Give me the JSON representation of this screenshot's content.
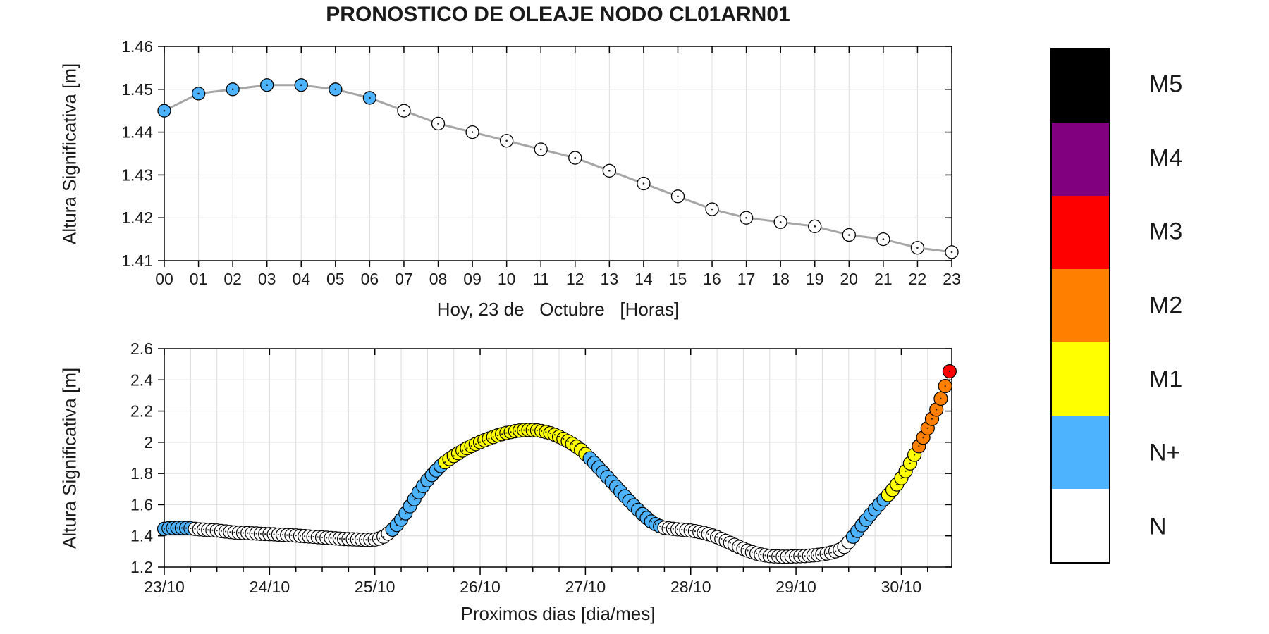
{
  "title": "PRONOSTICO DE OLEAJE NODO CL01ARN01",
  "colors": {
    "N": "#FFFFFF",
    "N+": "#4DB3FF",
    "M1": "#FFFF00",
    "M2": "#FF8000",
    "M3": "#FF0000",
    "M4": "#800080",
    "M5": "#000000",
    "grid": "#DCDCDC",
    "frame": "#000000",
    "line": "#A6A6A6"
  },
  "legend": {
    "entries": [
      {
        "label": "M5",
        "category": "M5"
      },
      {
        "label": "M4",
        "category": "M4"
      },
      {
        "label": "M3",
        "category": "M3"
      },
      {
        "label": "M2",
        "category": "M2"
      },
      {
        "label": "M1",
        "category": "M1"
      },
      {
        "label": "N+",
        "category": "N+"
      },
      {
        "label": "N",
        "category": "N"
      }
    ]
  },
  "chart_data": [
    {
      "type": "line",
      "name": "today-hourly-forecast",
      "xlabel": "Hoy, 23 de   Octubre   [Horas]",
      "ylabel": "Altura Significativa [m]",
      "ylim": [
        1.41,
        1.46
      ],
      "ytick_labels": [
        "1.41",
        "1.42",
        "1.43",
        "1.44",
        "1.45",
        "1.46"
      ],
      "grid": true,
      "x_ticklabels": [
        "00",
        "01",
        "02",
        "03",
        "04",
        "05",
        "06",
        "07",
        "08",
        "09",
        "10",
        "11",
        "12",
        "13",
        "14",
        "15",
        "16",
        "17",
        "18",
        "19",
        "20",
        "21",
        "22",
        "23"
      ],
      "values": [
        1.445,
        1.449,
        1.45,
        1.451,
        1.451,
        1.45,
        1.448,
        1.445,
        1.442,
        1.44,
        1.438,
        1.436,
        1.434,
        1.431,
        1.428,
        1.425,
        1.422,
        1.42,
        1.419,
        1.418,
        1.416,
        1.415,
        1.413,
        1.412
      ],
      "segments": [
        {
          "from": 0,
          "to": 6,
          "category": "N+"
        },
        {
          "from": 7,
          "to": 23,
          "category": "N"
        }
      ]
    },
    {
      "type": "scatter",
      "name": "next-days-hourly-forecast",
      "xlabel": "Proximos dias [dia/mes]",
      "ylabel": "Altura Significativa [m]",
      "ylim": [
        1.2,
        2.6
      ],
      "ytick_labels": [
        "1.2",
        "1.4",
        "1.6",
        "1.8",
        "2",
        "2.2",
        "2.4",
        "2.6"
      ],
      "grid": true,
      "x_ticklabels": [
        "23/10",
        "24/10",
        "25/10",
        "26/10",
        "27/10",
        "28/10",
        "29/10",
        "30/10"
      ],
      "x_tick_hours": [
        0,
        24,
        48,
        72,
        96,
        120,
        144,
        168
      ],
      "minor_tick_step_hours": 6,
      "x_range_hours": [
        0,
        179.5
      ],
      "point_interval_hours": 1,
      "values": [
        1.445,
        1.449,
        1.45,
        1.451,
        1.451,
        1.45,
        1.448,
        1.445,
        1.442,
        1.44,
        1.438,
        1.436,
        1.434,
        1.431,
        1.428,
        1.425,
        1.422,
        1.42,
        1.419,
        1.418,
        1.416,
        1.415,
        1.413,
        1.412,
        1.411,
        1.41,
        1.408,
        1.407,
        1.405,
        1.404,
        1.402,
        1.4,
        1.398,
        1.396,
        1.394,
        1.392,
        1.39,
        1.388,
        1.386,
        1.384,
        1.382,
        1.38,
        1.379,
        1.378,
        1.377,
        1.376,
        1.375,
        1.375,
        1.377,
        1.383,
        1.395,
        1.415,
        1.44,
        1.47,
        1.505,
        1.545,
        1.59,
        1.635,
        1.68,
        1.72,
        1.757,
        1.79,
        1.82,
        1.848,
        1.872,
        1.893,
        1.912,
        1.93,
        1.947,
        1.962,
        1.976,
        1.989,
        2.001,
        2.013,
        2.024,
        2.034,
        2.044,
        2.052,
        2.06,
        2.066,
        2.071,
        2.075,
        2.078,
        2.079,
        2.078,
        2.076,
        2.072,
        2.066,
        2.058,
        2.048,
        2.036,
        2.022,
        2.007,
        1.99,
        1.972,
        1.952,
        1.925,
        1.897,
        1.868,
        1.838,
        1.808,
        1.777,
        1.746,
        1.715,
        1.684,
        1.654,
        1.624,
        1.595,
        1.567,
        1.54,
        1.515,
        1.492,
        1.475,
        1.462,
        1.452,
        1.448,
        1.445,
        1.442,
        1.44,
        1.437,
        1.434,
        1.43,
        1.425,
        1.419,
        1.411,
        1.402,
        1.392,
        1.38,
        1.368,
        1.355,
        1.342,
        1.329,
        1.317,
        1.306,
        1.296,
        1.287,
        1.28,
        1.275,
        1.271,
        1.269,
        1.268,
        1.267,
        1.267,
        1.268,
        1.269,
        1.27,
        1.271,
        1.273,
        1.275,
        1.278,
        1.282,
        1.287,
        1.293,
        1.301,
        1.312,
        1.33,
        1.36,
        1.395,
        1.432,
        1.468,
        1.503,
        1.537,
        1.57,
        1.602,
        1.633,
        1.663,
        1.695,
        1.73,
        1.77,
        1.815,
        1.865,
        1.92,
        1.975,
        2.03,
        2.09,
        2.15,
        2.21,
        2.28,
        2.36,
        2.455
      ],
      "segments": [
        {
          "from": 0,
          "to": 6,
          "category": "N+"
        },
        {
          "from": 7,
          "to": 51,
          "category": "N"
        },
        {
          "from": 52,
          "to": 63,
          "category": "N+"
        },
        {
          "from": 64,
          "to": 96,
          "category": "M1"
        },
        {
          "from": 97,
          "to": 113,
          "category": "N+"
        },
        {
          "from": 114,
          "to": 156,
          "category": "N"
        },
        {
          "from": 157,
          "to": 164,
          "category": "N+"
        },
        {
          "from": 165,
          "to": 171,
          "category": "M1"
        },
        {
          "from": 172,
          "to": 178,
          "category": "M2"
        },
        {
          "from": 179,
          "to": 179,
          "category": "M3"
        }
      ]
    }
  ]
}
